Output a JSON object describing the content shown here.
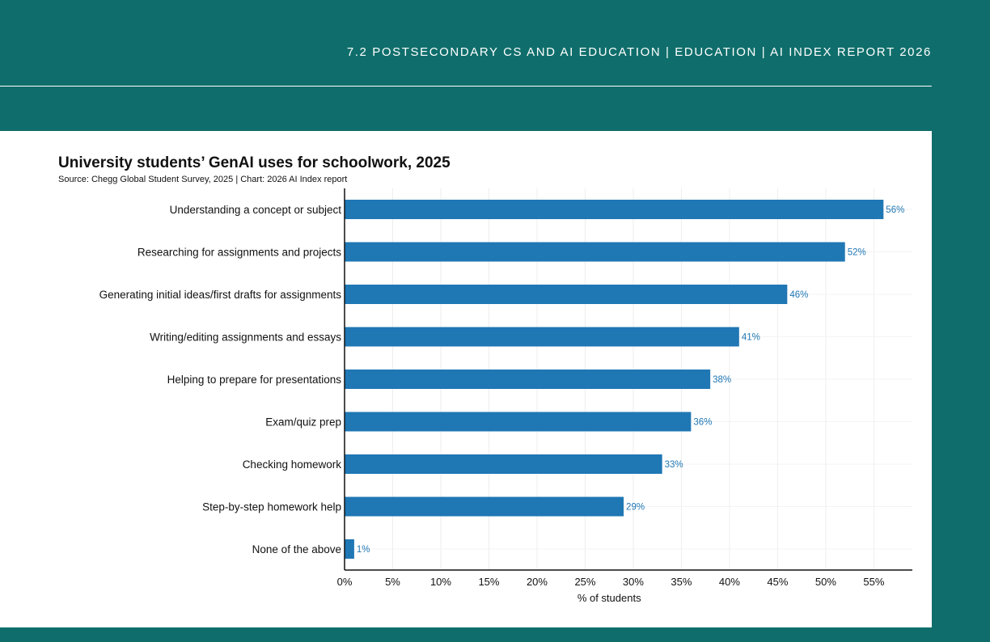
{
  "header": {
    "text": "7.2 POSTSECONDARY CS AND AI EDUCATION  |  EDUCATION  |  AI INDEX REPORT 2026"
  },
  "colors": {
    "background": "#0f6e6b",
    "bar": "#1f77b4",
    "data_label": "#1f77b4"
  },
  "chart_data": {
    "type": "bar",
    "orientation": "horizontal",
    "title": "University students’ GenAI uses for schoolwork, 2025",
    "subtitle": "Source: Chegg Global Student Survey, 2025 | Chart: 2026 AI Index report",
    "xlabel": "% of students",
    "ylabel": "",
    "categories": [
      "Understanding a concept or subject",
      "Researching for assignments and projects",
      "Generating initial ideas/first drafts for assignments",
      "Writing/editing assignments and essays",
      "Helping to prepare for presentations",
      "Exam/quiz prep",
      "Checking homework",
      "Step-by-step homework help",
      "None of the above"
    ],
    "values": [
      56,
      52,
      46,
      41,
      38,
      36,
      33,
      29,
      1
    ],
    "data_labels": [
      "56%",
      "52%",
      "46%",
      "41%",
      "38%",
      "36%",
      "33%",
      "29%",
      "1%"
    ],
    "xticks": [
      0,
      5,
      10,
      15,
      20,
      25,
      30,
      35,
      40,
      45,
      50,
      55
    ],
    "xtick_labels": [
      "0%",
      "5%",
      "10%",
      "15%",
      "20%",
      "25%",
      "30%",
      "35%",
      "40%",
      "45%",
      "50%",
      "55%"
    ],
    "xlim": [
      0,
      59
    ],
    "grid": true,
    "legend": "none"
  }
}
